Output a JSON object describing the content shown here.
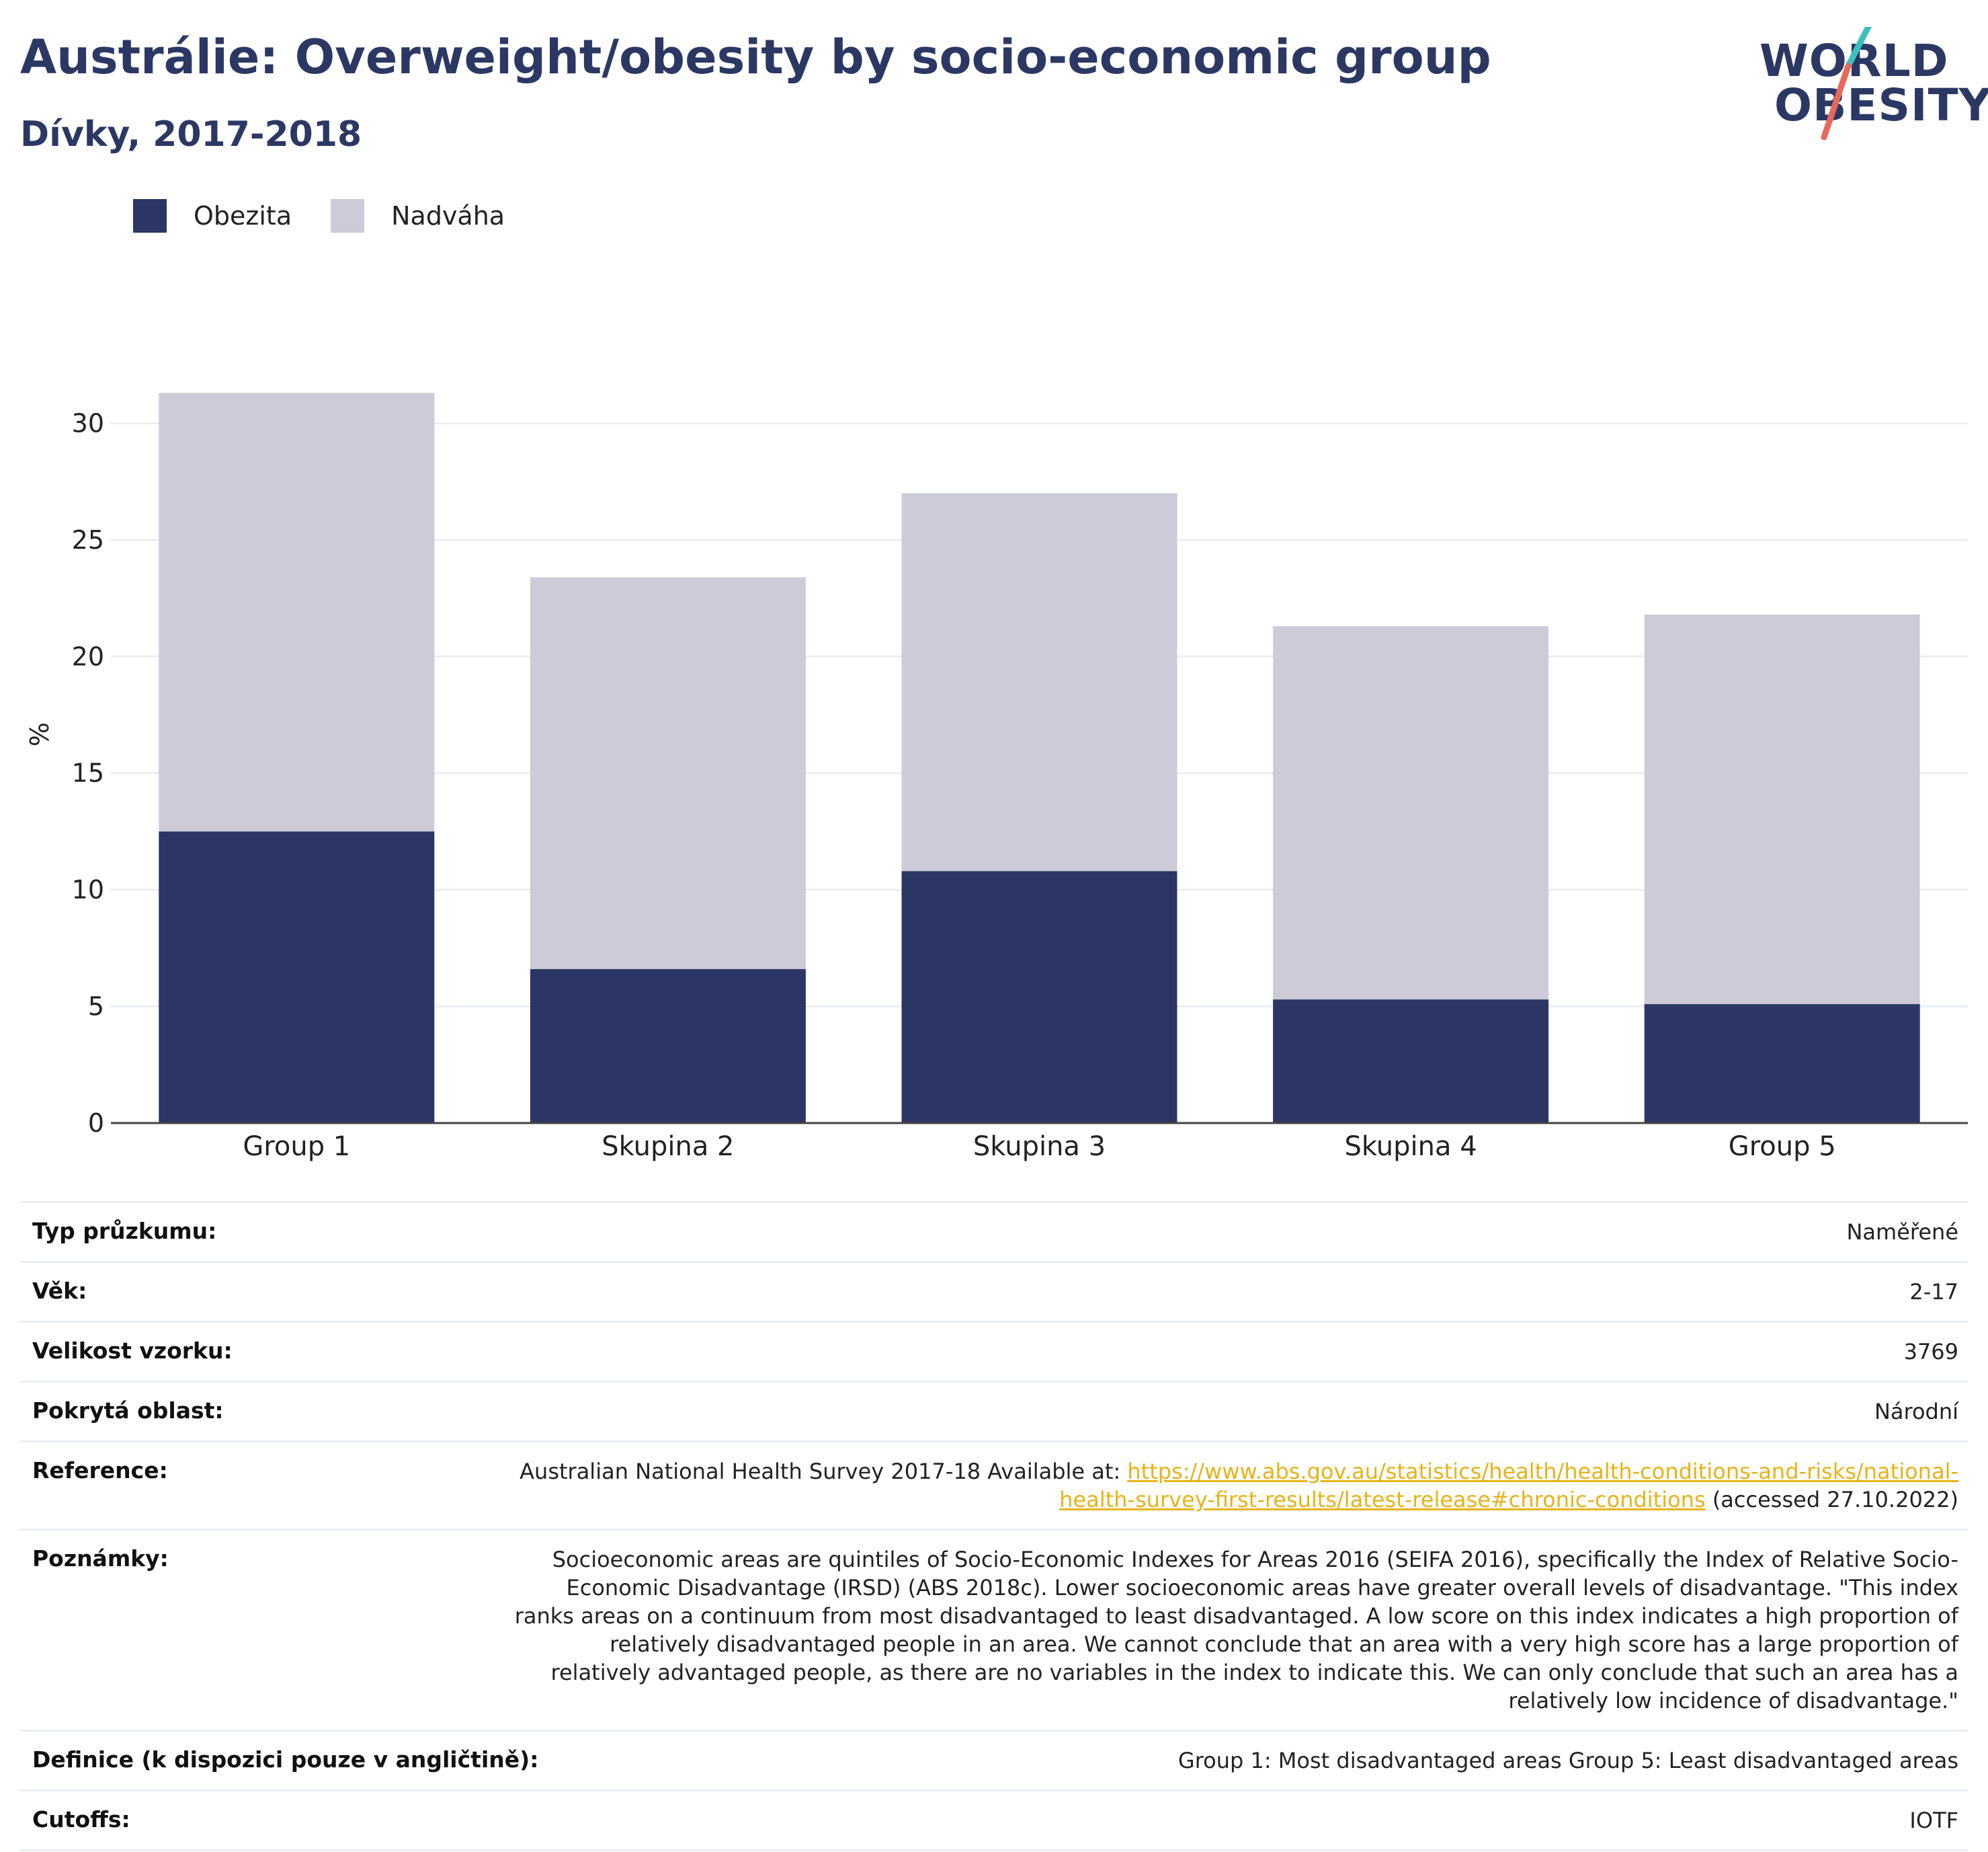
{
  "title": "Austrálie: Overweight/obesity by socio-economic group",
  "subtitle": "Dívky, 2017-2018",
  "logo": {
    "line1": "WORLD",
    "line2": "OBESITY"
  },
  "colors": {
    "obesity": "#2c3664",
    "overweight": "#cbccd7",
    "title": "#2c3864",
    "link": "#e6b319",
    "logo_slash_top": "#3cbfbf",
    "logo_slash_bottom": "#e8685a"
  },
  "legend": [
    {
      "label": "Obezita",
      "color": "#2c3664"
    },
    {
      "label": "Nadváha",
      "color": "#cbccd7"
    }
  ],
  "chart_data": {
    "type": "bar",
    "stacked": true,
    "categories": [
      "Group 1",
      "Skupina 2",
      "Skupina 3",
      "Skupina 4",
      "Group 5"
    ],
    "series": [
      {
        "name": "Obezita",
        "values": [
          12.5,
          6.6,
          10.8,
          5.3,
          5.1
        ]
      },
      {
        "name": "Nadváha",
        "values": [
          18.8,
          16.8,
          16.2,
          16.0,
          16.7
        ]
      }
    ],
    "ylabel": "%",
    "ylim": [
      0,
      32
    ],
    "yticks": [
      0,
      5,
      10,
      15,
      20,
      25,
      30
    ],
    "grid": true,
    "legend_position": "top-left"
  },
  "info": [
    {
      "label": "Typ průzkumu:",
      "value": "Naměřené"
    },
    {
      "label": "Věk:",
      "value": "2-17"
    },
    {
      "label": "Velikost vzorku:",
      "value": "3769"
    },
    {
      "label": "Pokrytá oblast:",
      "value": "Národní"
    },
    {
      "label": "Reference:",
      "value_prefix": "Australian National Health Survey 2017-18 Available at: ",
      "link": "https://www.abs.gov.au/statistics/health/health-conditions-and-risks/national-health-survey-first-results/latest-release#chronic-conditions",
      "value_suffix": " (accessed 27.10.2022)"
    },
    {
      "label": "Poznámky:",
      "value": "Socioeconomic areas are quintiles of Socio-Economic Indexes for Areas 2016 (SEIFA 2016), specifically the Index of Relative Socio-Economic Disadvantage (IRSD) (ABS 2018c). Lower socioeconomic areas have greater overall levels of disadvantage. \"This index ranks areas on a continuum from most disadvantaged to least disadvantaged. A low score on this index indicates a high proportion of relatively disadvantaged people in an area. We cannot conclude that an area with a very high score has a large proportion of relatively advantaged people, as there are no variables in the index to indicate this. We can only conclude that such an area has a relatively low incidence of disadvantage.\""
    },
    {
      "label": "Definice (k dispozici pouze v angličtině):",
      "value": "Group 1: Most disadvantaged areas Group 5: Least disadvantaged areas"
    },
    {
      "label": "Cutoffs:",
      "value": "IOTF"
    }
  ]
}
